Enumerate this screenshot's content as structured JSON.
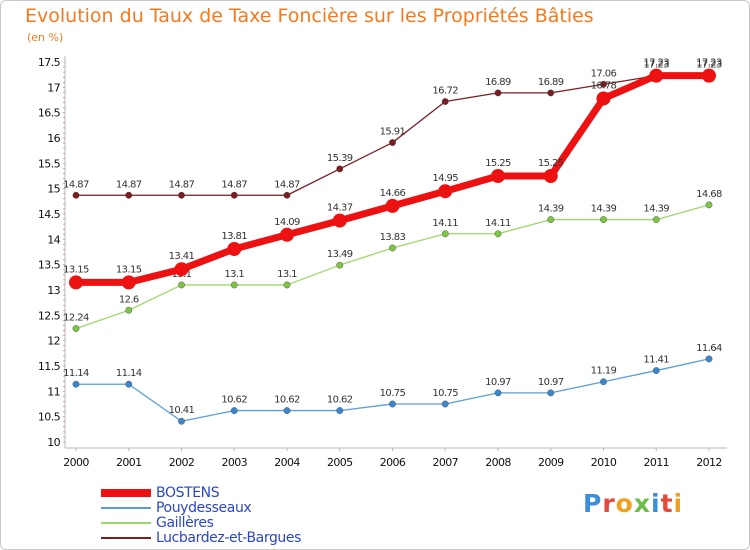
{
  "title": "Evolution du Taux de Taxe Foncière sur les Propriétés Bâties",
  "unit_label": "(en %)",
  "logo": {
    "text": "Proxiti",
    "letters": [
      {
        "ch": "P",
        "color": "#3a8fd8"
      },
      {
        "ch": "r",
        "color": "#e24a3b"
      },
      {
        "ch": "o",
        "color": "#f0a020"
      },
      {
        "ch": "x",
        "color": "#6cc04a"
      },
      {
        "ch": "i",
        "color": "#3a8fd8"
      },
      {
        "ch": "t",
        "color": "#e24a3b"
      },
      {
        "ch": "i",
        "color": "#f0a020"
      }
    ]
  },
  "chart_data": {
    "type": "line",
    "x": [
      "2000",
      "2001",
      "2002",
      "2003",
      "2004",
      "2005",
      "2006",
      "2007",
      "2008",
      "2009",
      "2010",
      "2011",
      "2012"
    ],
    "ylim": [
      10,
      17.5
    ],
    "yticks": [
      "10",
      "10.5",
      "11",
      "11.5",
      "12",
      "12.5",
      "13",
      "13.5",
      "14",
      "14.5",
      "15",
      "15.5",
      "16",
      "16.5",
      "17",
      "17.5"
    ],
    "grid": false,
    "legend_position": "bottom-left",
    "series": [
      {
        "name": "Lucbardez-et-Bargues",
        "color": "#7a1e24",
        "dot": "#7a1e24",
        "width": 1.3,
        "marker": 3.2,
        "values": [
          14.87,
          14.87,
          14.87,
          14.87,
          14.87,
          15.39,
          15.91,
          16.72,
          16.89,
          16.89,
          17.06,
          17.23,
          17.23
        ],
        "labels": [
          "14.87",
          "14.87",
          "14.87",
          "14.87",
          "14.87",
          "15.39",
          "15.91",
          "16.72",
          "16.89",
          "16.89",
          "17.06",
          "17.23",
          "17.23"
        ],
        "label_color": "#333333"
      },
      {
        "name": "Gaillères",
        "color": "#9ed86a",
        "dot": "#7fc442",
        "width": 1.3,
        "marker": 3.2,
        "values": [
          12.24,
          12.6,
          13.1,
          13.1,
          13.1,
          13.49,
          13.83,
          14.11,
          14.11,
          14.39,
          14.39,
          14.39,
          14.68
        ],
        "labels": [
          "12.24",
          "12.6",
          "13.1",
          "13.1",
          "13.1",
          "13.49",
          "13.83",
          "14.11",
          "14.11",
          "14.39",
          "14.39",
          "14.39",
          "14.68"
        ],
        "label_color": "#333333"
      },
      {
        "name": "Pouydesseaux",
        "color": "#5a9ed8",
        "dot": "#3c86cc",
        "width": 1.3,
        "marker": 3.2,
        "values": [
          11.14,
          11.14,
          10.41,
          10.62,
          10.62,
          10.62,
          10.75,
          10.75,
          10.97,
          10.97,
          11.19,
          11.41,
          11.64
        ],
        "labels": [
          "11.14",
          "11.14",
          "10.41",
          "10.62",
          "10.62",
          "10.62",
          "10.75",
          "10.75",
          "10.97",
          "10.97",
          "11.19",
          "11.41",
          "11.64"
        ],
        "label_color": "#333333"
      },
      {
        "name": "BOSTENS",
        "color": "#ee1111",
        "dot": "#ee1111",
        "width": 7,
        "marker": 7,
        "values": [
          13.15,
          13.15,
          13.41,
          13.81,
          14.09,
          14.37,
          14.66,
          14.95,
          15.25,
          15.25,
          16.78,
          17.23,
          17.23
        ],
        "labels": [
          "13.15",
          "13.15",
          "13.41",
          "13.81",
          "14.09",
          "14.37",
          "14.66",
          "14.95",
          "15.25",
          "15.25",
          "16.78",
          "17.23",
          "17.23"
        ],
        "label_color": "#333333"
      }
    ],
    "legend_order": [
      "BOSTENS",
      "Pouydesseaux",
      "Gaillères",
      "Lucbardez-et-Bargues"
    ]
  }
}
